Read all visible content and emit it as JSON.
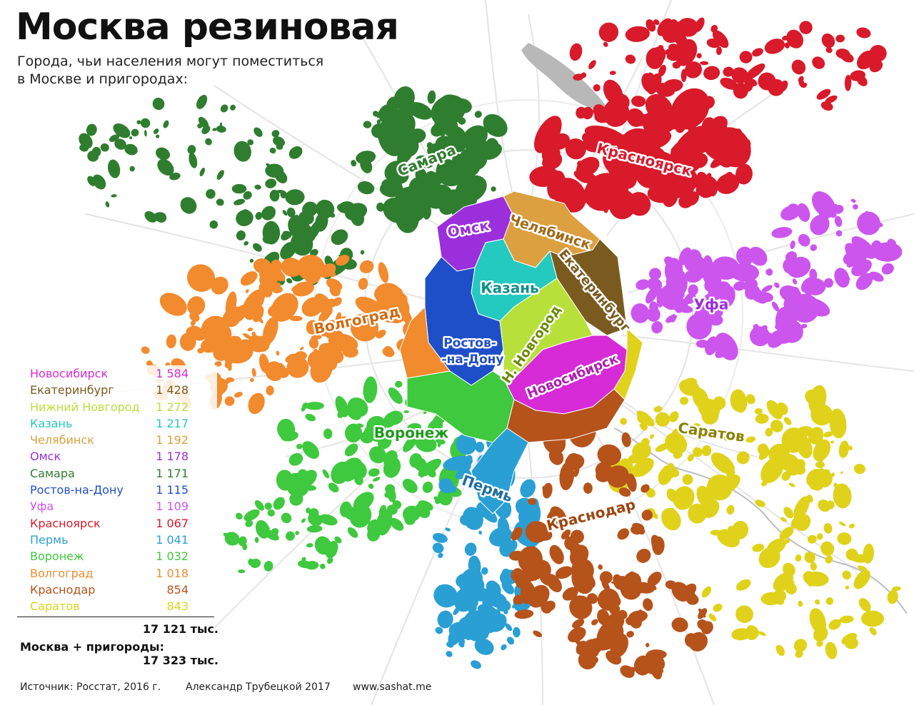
{
  "title": "Москва резиновая",
  "subtitle": "Города, чьи населения могут поместиться в Москве и пригородах:",
  "legend": [
    {
      "name": "Новосибирск",
      "value": "1 584",
      "color": "#d62bd6"
    },
    {
      "name": "Екатеринбург",
      "value": "1 428",
      "color": "#7a5a1e"
    },
    {
      "name": "Нижний Новгород",
      "value": "1 272",
      "color": "#b8e03a"
    },
    {
      "name": "Казань",
      "value": "1 217",
      "color": "#24c9c0"
    },
    {
      "name": "Челябинск",
      "value": "1 192",
      "color": "#dca040"
    },
    {
      "name": "Омск",
      "value": "1 178",
      "color": "#9b2fdc"
    },
    {
      "name": "Самара",
      "value": "1 171",
      "color": "#2f7d2f"
    },
    {
      "name": "Ростов-на-Дону",
      "value": "1 115",
      "color": "#1f4fc8"
    },
    {
      "name": "Уфа",
      "value": "1 109",
      "color": "#cc55ee"
    },
    {
      "name": "Красноярск",
      "value": "1 067",
      "color": "#d81a2a"
    },
    {
      "name": "Пермь",
      "value": "1 041",
      "color": "#2a9fd4"
    },
    {
      "name": "Воронеж",
      "value": "1 032",
      "color": "#3ec93e"
    },
    {
      "name": "Волгоград",
      "value": "1 018",
      "color": "#f28a2e"
    },
    {
      "name": "Краснодар",
      "value": "854",
      "color": "#b5531b"
    },
    {
      "name": "Саратов",
      "value": "843",
      "color": "#e0d21a"
    }
  ],
  "total": "17 121 тыс.",
  "moscow_label": "Москва + пригороды:",
  "moscow_total": "17 323 тыс.",
  "footer": {
    "source": "Источник: Росстат, 2016 г.",
    "author": "Александр Трубецкой 2017",
    "site": "www.sashat.me"
  },
  "map_labels": [
    {
      "text": "Самара",
      "color": "#2f7d2f"
    },
    {
      "text": "Красноярск",
      "color": "#d81a2a"
    },
    {
      "text": "Омск",
      "color": "#9b2fdc"
    },
    {
      "text": "Челябинск",
      "color": "#a06a14"
    },
    {
      "text": "Екатеринбург",
      "color": "#7a5a1e"
    },
    {
      "text": "Казань",
      "color": "#0f8f88"
    },
    {
      "text": "Уфа",
      "color": "#9b2fdc"
    },
    {
      "text": "Волгоград",
      "color": "#d06a10"
    },
    {
      "text": "Ростов-",
      "color": "#1f4fc8"
    },
    {
      "text": "-на-Дону",
      "color": "#1f4fc8"
    },
    {
      "text": "Н. Новгород",
      "color": "#6a8a00"
    },
    {
      "text": "Новосибирск",
      "color": "#b01cb0"
    },
    {
      "text": "Воронеж",
      "color": "#1f9a1f"
    },
    {
      "text": "Саратов",
      "color": "#8a8200"
    },
    {
      "text": "Пермь",
      "color": "#1f6f9f"
    },
    {
      "text": "Краснодар",
      "color": "#a0440e"
    }
  ]
}
